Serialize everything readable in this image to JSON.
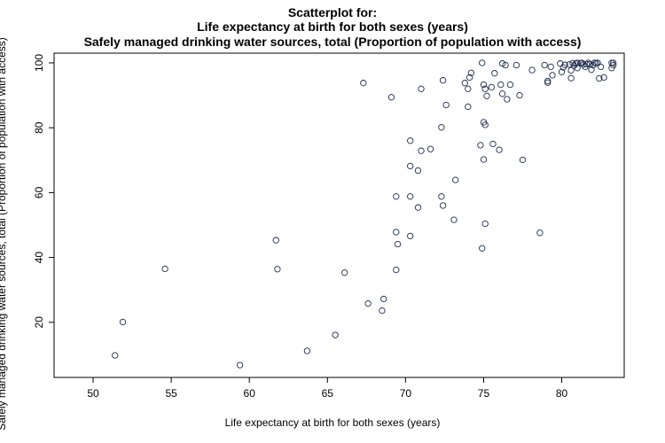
{
  "chart_data": {
    "type": "scatter",
    "title": "Scatterplot for:",
    "subtitle_lines": [
      "Life expectancy at birth for both sexes (years)",
      "Safely managed drinking water sources, total (Proportion of population with access)"
    ],
    "xlabel": "Life expectancy at birth for both sexes (years)",
    "ylabel": "Safely managed drinking water sources, total (Proportion of population with access)",
    "xlim": [
      47.5,
      84.0
    ],
    "ylim": [
      3.0,
      103.0
    ],
    "xticks": [
      50,
      55,
      60,
      65,
      70,
      75,
      80
    ],
    "yticks": [
      20,
      40,
      60,
      80,
      100
    ],
    "grid": false,
    "legend": "none",
    "marker": "open-circle",
    "points": [
      [
        51.4,
        9.8
      ],
      [
        51.9,
        20.1
      ],
      [
        54.6,
        36.5
      ],
      [
        59.4,
        6.8
      ],
      [
        61.7,
        45.3
      ],
      [
        61.8,
        36.4
      ],
      [
        63.7,
        11.2
      ],
      [
        65.5,
        16.1
      ],
      [
        66.1,
        35.3
      ],
      [
        67.3,
        93.8
      ],
      [
        67.6,
        25.8
      ],
      [
        68.5,
        23.6
      ],
      [
        68.6,
        27.2
      ],
      [
        69.1,
        89.4
      ],
      [
        69.4,
        47.8
      ],
      [
        69.4,
        36.2
      ],
      [
        69.4,
        58.8
      ],
      [
        69.5,
        44.1
      ],
      [
        70.3,
        46.6
      ],
      [
        70.3,
        58.8
      ],
      [
        70.3,
        68.2
      ],
      [
        70.3,
        76.0
      ],
      [
        70.8,
        66.8
      ],
      [
        70.8,
        55.4
      ],
      [
        71.0,
        72.9
      ],
      [
        71.0,
        92.0
      ],
      [
        71.6,
        73.4
      ],
      [
        72.3,
        58.8
      ],
      [
        72.3,
        80.1
      ],
      [
        72.4,
        56.0
      ],
      [
        72.4,
        94.6
      ],
      [
        72.6,
        87.0
      ],
      [
        73.1,
        51.6
      ],
      [
        73.2,
        63.9
      ],
      [
        73.8,
        93.8
      ],
      [
        74.0,
        92.0
      ],
      [
        74.0,
        86.5
      ],
      [
        74.1,
        95.5
      ],
      [
        74.2,
        96.9
      ],
      [
        74.8,
        74.6
      ],
      [
        74.9,
        100.0
      ],
      [
        74.9,
        42.8
      ],
      [
        75.0,
        93.3
      ],
      [
        75.0,
        81.7
      ],
      [
        75.0,
        70.2
      ],
      [
        75.1,
        92.0
      ],
      [
        75.1,
        80.9
      ],
      [
        75.1,
        50.4
      ],
      [
        75.2,
        89.8
      ],
      [
        75.5,
        92.5
      ],
      [
        75.6,
        75.0
      ],
      [
        75.7,
        96.8
      ],
      [
        76.0,
        73.2
      ],
      [
        76.1,
        93.3
      ],
      [
        76.2,
        99.8
      ],
      [
        76.2,
        90.5
      ],
      [
        76.4,
        99.3
      ],
      [
        76.5,
        88.8
      ],
      [
        76.7,
        93.3
      ],
      [
        77.1,
        99.3
      ],
      [
        77.3,
        90.0
      ],
      [
        77.5,
        70.1
      ],
      [
        78.1,
        97.8
      ],
      [
        78.6,
        47.6
      ],
      [
        78.9,
        99.3
      ],
      [
        79.1,
        93.9
      ],
      [
        79.1,
        94.4
      ],
      [
        79.3,
        98.8
      ],
      [
        79.4,
        96.2
      ],
      [
        79.9,
        99.8
      ],
      [
        80.0,
        97.2
      ],
      [
        80.1,
        98.6
      ],
      [
        80.2,
        99.4
      ],
      [
        80.5,
        99.5
      ],
      [
        80.6,
        95.3
      ],
      [
        80.6,
        97.7
      ],
      [
        80.7,
        99.9
      ],
      [
        80.8,
        99.2
      ],
      [
        80.9,
        99.8
      ],
      [
        81.0,
        100.0
      ],
      [
        81.0,
        98.4
      ],
      [
        81.2,
        99.9
      ],
      [
        81.3,
        100.0
      ],
      [
        81.4,
        99.5
      ],
      [
        81.5,
        98.8
      ],
      [
        81.6,
        99.6
      ],
      [
        81.7,
        100.0
      ],
      [
        81.8,
        99.6
      ],
      [
        81.9,
        97.9
      ],
      [
        82.0,
        99.3
      ],
      [
        82.1,
        100.0
      ],
      [
        82.2,
        99.9
      ],
      [
        82.3,
        100.0
      ],
      [
        82.4,
        95.2
      ],
      [
        82.5,
        98.8
      ],
      [
        82.7,
        95.5
      ],
      [
        83.2,
        100.0
      ],
      [
        83.2,
        98.4
      ],
      [
        83.3,
        99.3
      ],
      [
        83.3,
        100.0
      ]
    ]
  },
  "colors": {
    "point_stroke": "#1b2a4a",
    "axis": "#000000",
    "background": "#ffffff"
  }
}
